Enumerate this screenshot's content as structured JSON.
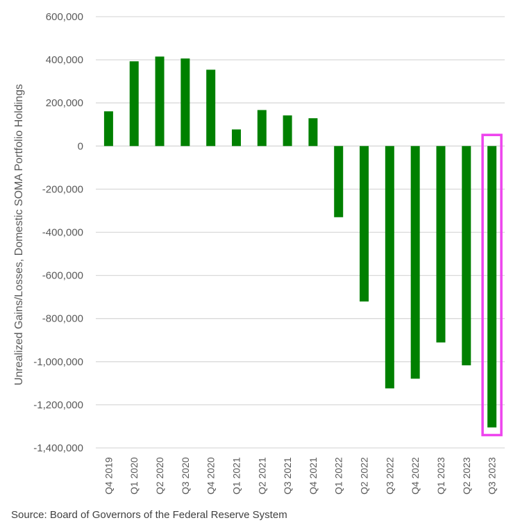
{
  "chart_data": {
    "type": "bar",
    "title": "",
    "xlabel": "",
    "ylabel": "Unrealized Gains/Losses, Domestic SOMA Portfolio Holdings",
    "ylim": [
      -1400000,
      600000
    ],
    "ytick_step": 200000,
    "ytick_labels": [
      "600,000",
      "400,000",
      "200,000",
      "0",
      "-200,000",
      "-400,000",
      "-600,000",
      "-800,000",
      "-1,000,000",
      "-1,200,000",
      "-1,400,000"
    ],
    "grid": true,
    "categories": [
      "Q4 2019",
      "Q1 2020",
      "Q2 2020",
      "Q3 2020",
      "Q4 2020",
      "Q1 2021",
      "Q2 2021",
      "Q3 2021",
      "Q4 2021",
      "Q1 2022",
      "Q2 2022",
      "Q3 2022",
      "Q4 2022",
      "Q1 2023",
      "Q2 2023",
      "Q3 2023"
    ],
    "values": [
      161000,
      393000,
      415000,
      406000,
      354000,
      77000,
      167000,
      142000,
      129000,
      -330000,
      -721000,
      -1124000,
      -1079000,
      -911000,
      -1017000,
      -1305000
    ],
    "bar_color": "#008000",
    "highlight": {
      "category": "Q3 2023",
      "color": "#EE44EE"
    },
    "source": "Source: Board of Governors of the Federal Reserve System"
  }
}
